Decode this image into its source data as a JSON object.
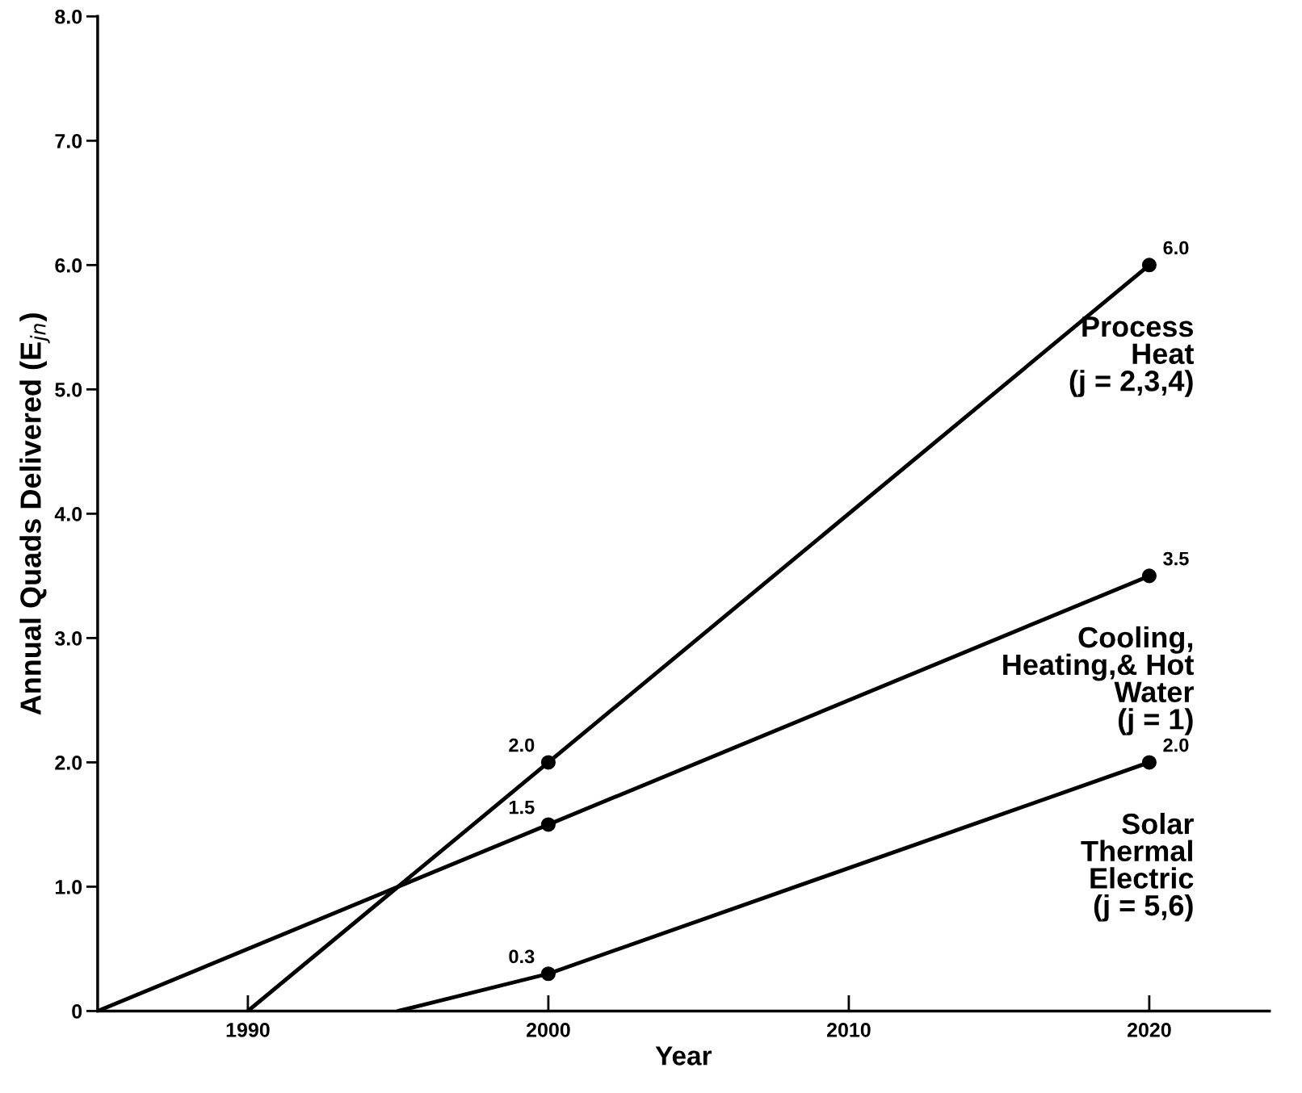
{
  "chart_data": {
    "type": "line",
    "xlabel": "Year",
    "ylabel": "Annual Quads Delivered (E$_{jn}$)",
    "xlim": [
      1985,
      2024
    ],
    "xticks": [
      1990,
      2000,
      2010,
      2020
    ],
    "ylim": [
      0,
      8
    ],
    "yticks": [
      {
        "value": 0,
        "label": "0"
      },
      {
        "value": 1,
        "label": "1.0"
      },
      {
        "value": 2,
        "label": "2.0"
      },
      {
        "value": 3,
        "label": "3.0"
      },
      {
        "value": 4,
        "label": "4.0"
      },
      {
        "value": 5,
        "label": "5.0"
      },
      {
        "value": 6,
        "label": "6.0"
      },
      {
        "value": 7,
        "label": "7.0"
      },
      {
        "value": 8,
        "label": "8.0"
      }
    ],
    "grid": false,
    "legend": false,
    "marker": "circle",
    "line_style": "solid",
    "series": [
      {
        "name": "Process\nHeat\n(j = 2,3,4)",
        "color": "#000000",
        "x": [
          1990,
          2000,
          2020
        ],
        "values": [
          0,
          2.0,
          6.0
        ],
        "value_labels": [
          null,
          "2.0",
          "6.0"
        ]
      },
      {
        "name": "Cooling,\nHeating,& Hot\nWater\n(j = 1)",
        "color": "#000000",
        "x": [
          1985,
          2000,
          2020
        ],
        "values": [
          0,
          1.5,
          3.5
        ],
        "value_labels": [
          null,
          "1.5",
          "3.5"
        ]
      },
      {
        "name": "Solar\nThermal\nElectric\n(j = 5,6)",
        "color": "#000000",
        "x": [
          1995,
          2000,
          2020
        ],
        "values": [
          0,
          0.3,
          2.0
        ],
        "value_labels": [
          null,
          "0.3",
          "2.0"
        ]
      }
    ]
  }
}
